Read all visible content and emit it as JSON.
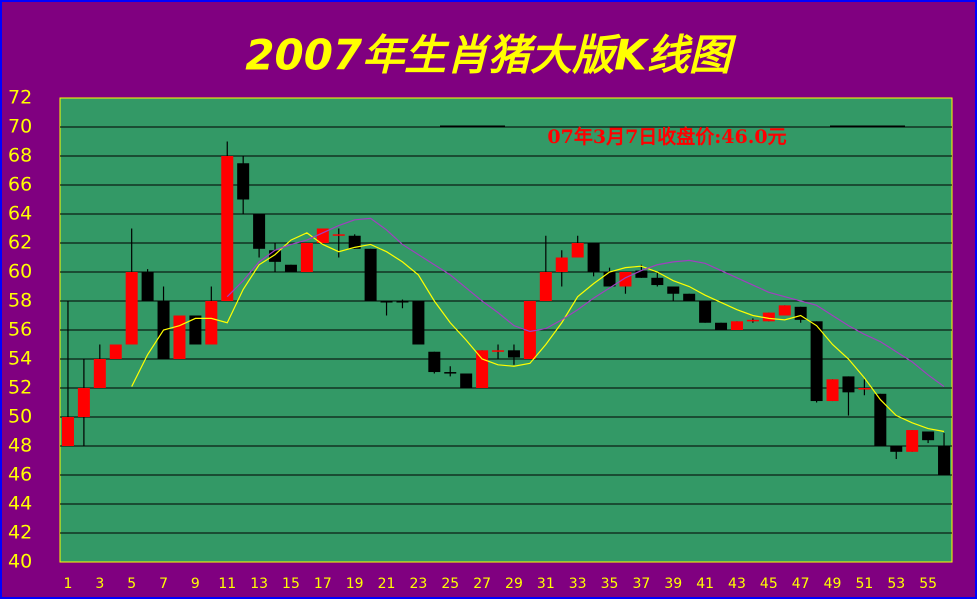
{
  "chart_data": {
    "type": "candlestick",
    "title": "2007年生肖猪大版K线图",
    "annotation": "07年3月7日收盘价:46.0元",
    "categories": [
      "1",
      null,
      "3",
      null,
      "5",
      null,
      "7",
      null,
      "9",
      null,
      "11",
      null,
      "13",
      null,
      "15",
      null,
      "17",
      null,
      "19",
      null,
      "21",
      null,
      "23",
      null,
      "25",
      null,
      "27",
      null,
      "29",
      null,
      "31",
      null,
      "33",
      null,
      "35",
      null,
      "37",
      null,
      "39",
      null,
      "41",
      null,
      "43",
      null,
      "45",
      null,
      "47",
      null,
      "49",
      null,
      "51",
      null,
      "53",
      null,
      "55",
      null
    ],
    "open": [
      48,
      50,
      52,
      54,
      55,
      60,
      58,
      54,
      57,
      55,
      58,
      67.5,
      64,
      61.5,
      60.5,
      60,
      62,
      62.5,
      62.5,
      61.6,
      58,
      58,
      58,
      54.5,
      53.1,
      53,
      52,
      54.5,
      54.6,
      54,
      58,
      60,
      61,
      62,
      60,
      59,
      60.1,
      59.6,
      59,
      58.5,
      58,
      56.5,
      56,
      56.6,
      56.6,
      57,
      57.6,
      56.6,
      51.1,
      52.8,
      52,
      51.6,
      48,
      47.6,
      49,
      48
    ],
    "high": [
      58,
      54,
      55,
      55,
      63,
      60.2,
      59,
      57,
      57,
      59,
      69,
      68,
      64,
      62,
      60.5,
      62,
      63,
      63,
      62.6,
      61.6,
      58,
      58.1,
      58,
      54.5,
      53.5,
      53,
      54.6,
      55,
      55,
      58,
      62.5,
      61.5,
      62.5,
      62,
      60.3,
      60,
      60.5,
      60,
      59,
      58.5,
      58,
      56.5,
      56.6,
      56.8,
      57.2,
      57.7,
      57.6,
      56.6,
      52.6,
      52.8,
      52.6,
      51.6,
      48,
      49.1,
      49,
      48.9
    ],
    "low": [
      48,
      48,
      52,
      54,
      55,
      58,
      54,
      54,
      55,
      55,
      58,
      64,
      61,
      60,
      60,
      60,
      62,
      61,
      61.6,
      58,
      57,
      57.5,
      55,
      53,
      52.8,
      52,
      52,
      54,
      53.6,
      54,
      58,
      59,
      61,
      59.7,
      59,
      58.5,
      59.6,
      59,
      58,
      58,
      56.5,
      56,
      56,
      56.5,
      56.6,
      57,
      56.5,
      51,
      51.1,
      50.1,
      51.5,
      48,
      47.1,
      47.6,
      48.2,
      46
    ],
    "close": [
      50,
      52,
      54,
      55,
      60,
      58,
      54,
      57,
      55,
      58,
      68,
      65,
      61.6,
      60.7,
      60,
      62,
      63,
      62.6,
      61.6,
      58,
      57.9,
      57.9,
      55,
      53.1,
      53,
      52,
      54.6,
      54.6,
      54.1,
      58,
      60,
      61,
      62,
      60,
      59,
      60,
      59.6,
      59.1,
      58.5,
      58,
      56.5,
      56,
      56.6,
      56.7,
      57.2,
      57.7,
      56.7,
      51.1,
      52.6,
      51.7,
      52,
      48,
      47.6,
      49.1,
      48.4,
      46
    ],
    "up_color": "#ff0000",
    "down_color": "#000000",
    "moving_averages": [
      {
        "color": "#ffff00",
        "values": [
          null,
          null,
          null,
          null,
          52.1,
          54.3,
          56,
          56.3,
          56.8,
          56.8,
          56.5,
          58.8,
          60.5,
          61.2,
          62.2,
          62.7,
          61.9,
          61.4,
          61.7,
          61.9,
          61.4,
          60.7,
          59.8,
          58,
          56.5,
          55.3,
          54,
          53.6,
          53.5,
          53.7,
          55,
          56.5,
          58.3,
          59.2,
          60,
          60.3,
          60.4,
          60,
          59.4,
          59,
          58.4,
          57.9,
          57.4,
          57,
          56.8,
          56.7,
          57,
          56.3,
          55,
          54,
          52.7,
          51.2,
          50.1,
          49.6,
          49.2,
          49
        ]
      },
      {
        "color": "#a040c0",
        "values": [
          null,
          null,
          null,
          null,
          null,
          null,
          null,
          null,
          null,
          null,
          58.3,
          59.4,
          60.7,
          61.5,
          61.9,
          62.2,
          62.7,
          63.2,
          63.6,
          63.7,
          62.9,
          61.9,
          61.2,
          60.5,
          59.8,
          58.9,
          58,
          57.2,
          56.3,
          55.9,
          56.1,
          56.7,
          57.4,
          58.2,
          58.9,
          59.6,
          60.1,
          60.5,
          60.7,
          60.8,
          60.6,
          60.1,
          59.6,
          59.1,
          58.6,
          58.3,
          58,
          57.7,
          57,
          56.3,
          55.7,
          55.2,
          54.5,
          53.8,
          52.9,
          52.1
        ]
      }
    ],
    "ylim": [
      40,
      72
    ],
    "yticks": [
      40,
      42,
      44,
      46,
      48,
      50,
      52,
      54,
      56,
      58,
      60,
      62,
      64,
      66,
      68,
      70,
      72
    ],
    "grid": true
  }
}
